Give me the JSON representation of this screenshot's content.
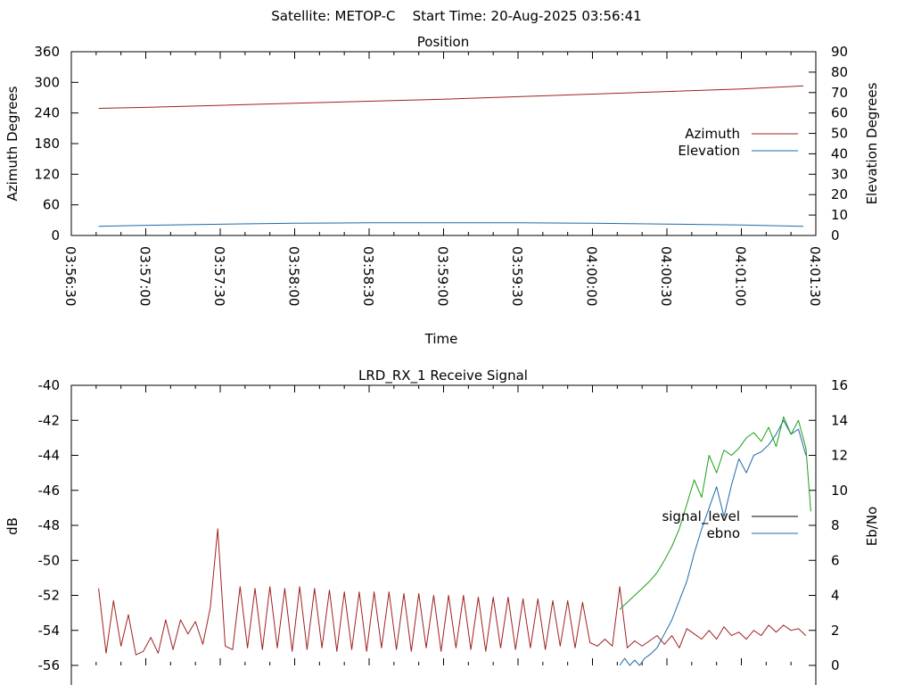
{
  "figure": {
    "title": "Satellite: METOP-C    Start Time: 20-Aug-2025 03:56:41"
  },
  "chart_data": [
    {
      "type": "line",
      "title": "Position",
      "xlabel": "Time",
      "ylabel": "Azimuth Degrees",
      "y2label": "Elevation Degrees",
      "xlim": [
        "03:56:30",
        "04:01:30"
      ],
      "ylim": [
        0,
        360
      ],
      "y2lim": [
        0,
        90
      ],
      "x_ticks": [
        "03:56:30",
        "03:57:00",
        "03:57:30",
        "03:58:00",
        "03:58:30",
        "03:59:00",
        "03:59:30",
        "04:00:00",
        "04:00:30",
        "04:01:00",
        "04:01:30"
      ],
      "y_ticks": [
        "0",
        "60",
        "120",
        "180",
        "240",
        "300",
        "360"
      ],
      "y2_ticks": [
        "0",
        "10",
        "20",
        "30",
        "40",
        "50",
        "60",
        "70",
        "80",
        "90"
      ],
      "legend_position": "right",
      "series": [
        {
          "name": "Azimuth",
          "axis": "y",
          "color": "#a02020",
          "x": [
            "03:56:41",
            "03:57:00",
            "03:57:30",
            "03:58:00",
            "03:58:30",
            "03:59:00",
            "03:59:30",
            "04:00:00",
            "04:00:30",
            "04:01:00",
            "04:01:25"
          ],
          "values": [
            249,
            251,
            255,
            259,
            263,
            267,
            272,
            277,
            282,
            287,
            293
          ]
        },
        {
          "name": "Elevation",
          "axis": "y2",
          "color": "#1e6aa8",
          "x": [
            "03:56:41",
            "03:57:00",
            "03:57:30",
            "03:58:00",
            "03:58:30",
            "03:59:00",
            "03:59:30",
            "04:00:00",
            "04:00:30",
            "04:01:00",
            "04:01:25"
          ],
          "values": [
            4.5,
            5.0,
            5.5,
            6.0,
            6.2,
            6.2,
            6.2,
            6.0,
            5.6,
            5.1,
            4.5
          ]
        }
      ]
    },
    {
      "type": "line",
      "title": "LRD_RX_1 Receive Signal",
      "xlabel": "",
      "ylabel": "dB",
      "y2label": "Eb/No",
      "xlim": [
        "03:56:30",
        "04:01:30"
      ],
      "ylim": [
        -56,
        -40
      ],
      "y2lim": [
        0,
        16
      ],
      "y_ticks": [
        "-56",
        "-54",
        "-52",
        "-50",
        "-48",
        "-46",
        "-44",
        "-42",
        "-40"
      ],
      "y2_ticks": [
        "0",
        "2",
        "4",
        "6",
        "8",
        "10",
        "12",
        "14",
        "16"
      ],
      "legend_position": "right",
      "series": [
        {
          "name": "signal_level",
          "axis": "y",
          "color": "#a02020",
          "x": [
            "03:56:41",
            "03:56:44",
            "03:56:47",
            "03:56:50",
            "03:56:53",
            "03:56:56",
            "03:56:59",
            "03:57:02",
            "03:57:05",
            "03:57:08",
            "03:57:11",
            "03:57:14",
            "03:57:17",
            "03:57:20",
            "03:57:23",
            "03:57:26",
            "03:57:29",
            "03:57:32",
            "03:57:35",
            "03:57:38",
            "03:57:41",
            "03:57:44",
            "03:57:47",
            "03:57:50",
            "03:57:53",
            "03:57:56",
            "03:57:59",
            "03:58:02",
            "03:58:05",
            "03:58:08",
            "03:58:11",
            "03:58:14",
            "03:58:17",
            "03:58:20",
            "03:58:23",
            "03:58:26",
            "03:58:29",
            "03:58:32",
            "03:58:35",
            "03:58:38",
            "03:58:41",
            "03:58:44",
            "03:58:47",
            "03:58:50",
            "03:58:53",
            "03:58:56",
            "03:58:59",
            "03:59:02",
            "03:59:05",
            "03:59:08",
            "03:59:11",
            "03:59:14",
            "03:59:17",
            "03:59:20",
            "03:59:23",
            "03:59:26",
            "03:59:29",
            "03:59:32",
            "03:59:35",
            "03:59:38",
            "03:59:41",
            "03:59:44",
            "03:59:47",
            "03:59:50",
            "03:59:53",
            "03:59:56",
            "03:59:59",
            "04:00:02",
            "04:00:05",
            "04:00:08",
            "04:00:11",
            "04:00:14",
            "04:00:17",
            "04:00:20",
            "04:00:23",
            "04:00:26",
            "04:00:29",
            "04:00:32",
            "04:00:35",
            "04:00:38",
            "04:00:41",
            "04:00:44",
            "04:00:47",
            "04:00:50",
            "04:00:53",
            "04:00:56",
            "04:00:59",
            "04:01:02",
            "04:01:05",
            "04:01:08",
            "04:01:11",
            "04:01:14",
            "04:01:17",
            "04:01:20",
            "04:01:23",
            "04:01:26"
          ],
          "values": [
            -51.6,
            -55.3,
            -52.3,
            -54.9,
            -53.1,
            -55.4,
            -55.2,
            -54.4,
            -55.3,
            -53.4,
            -55.1,
            -53.4,
            -54.2,
            -53.5,
            -54.8,
            -52.7,
            -48.2,
            -54.9,
            -55.1,
            -51.5,
            -55.0,
            -51.6,
            -55.1,
            -51.5,
            -55.0,
            -51.6,
            -55.2,
            -51.5,
            -55.1,
            -51.6,
            -55.0,
            -51.7,
            -55.2,
            -51.8,
            -55.1,
            -51.8,
            -55.2,
            -51.8,
            -55.0,
            -51.8,
            -55.1,
            -51.9,
            -55.2,
            -51.9,
            -55.0,
            -52.0,
            -55.2,
            -52.0,
            -55.0,
            -52.0,
            -55.1,
            -52.1,
            -55.2,
            -52.1,
            -55.0,
            -52.1,
            -55.1,
            -52.2,
            -55.0,
            -52.2,
            -55.1,
            -52.3,
            -54.9,
            -52.3,
            -55.0,
            -52.4,
            -54.7,
            -54.9,
            -54.5,
            -54.9,
            -51.5,
            -55.0,
            -54.6,
            -54.9,
            -54.6,
            -54.3,
            -54.8,
            -54.3,
            -55.0,
            -53.9,
            -54.2,
            -54.5,
            -54.0,
            -54.5,
            -53.8,
            -54.3,
            -54.1,
            -54.5,
            -54.0,
            -54.3,
            -53.7,
            -54.1,
            -53.7,
            -54.0,
            -53.9,
            -54.3
          ]
        },
        {
          "name": "ebno",
          "axis": "y2",
          "color": "#1e6aa8",
          "x": [
            "04:00:11",
            "04:00:13",
            "04:00:15",
            "04:00:17",
            "04:00:19",
            "04:00:21",
            "04:00:23",
            "04:00:26",
            "04:00:29",
            "04:00:32",
            "04:00:35",
            "04:00:38",
            "04:00:41",
            "04:00:44",
            "04:00:47",
            "04:00:50",
            "04:00:53",
            "04:00:56",
            "04:00:59",
            "04:01:02",
            "04:01:05",
            "04:01:08",
            "04:01:11",
            "04:01:14",
            "04:01:17",
            "04:01:20",
            "04:01:23",
            "04:01:26"
          ],
          "values": [
            0.0,
            0.4,
            0.0,
            0.3,
            0.0,
            0.4,
            0.6,
            1.0,
            1.8,
            2.6,
            3.7,
            4.8,
            6.4,
            7.8,
            9.0,
            10.2,
            8.5,
            10.3,
            11.8,
            11.0,
            12.0,
            12.2,
            12.6,
            13.2,
            14.0,
            13.2,
            13.5,
            12.0
          ]
        },
        {
          "axis": "y2",
          "color": "#18a018",
          "x": [
            "04:00:11",
            "04:00:14",
            "04:00:17",
            "04:00:20",
            "04:00:23",
            "04:00:26",
            "04:00:29",
            "04:00:32",
            "04:00:35",
            "04:00:38",
            "04:00:41",
            "04:00:44",
            "04:00:47",
            "04:00:50",
            "04:00:53",
            "04:00:56",
            "04:00:59",
            "04:01:02",
            "04:01:05",
            "04:01:08",
            "04:01:11",
            "04:01:14",
            "04:01:17",
            "04:01:20",
            "04:01:23",
            "04:01:26",
            "04:01:28"
          ],
          "values": [
            3.2,
            3.6,
            4.0,
            4.4,
            4.8,
            5.3,
            6.0,
            6.8,
            7.8,
            9.2,
            10.6,
            9.6,
            12.0,
            11.0,
            12.3,
            12.0,
            12.4,
            13.0,
            13.3,
            12.8,
            13.6,
            12.5,
            14.2,
            13.2,
            14.0,
            12.4,
            8.8
          ]
        }
      ]
    }
  ]
}
